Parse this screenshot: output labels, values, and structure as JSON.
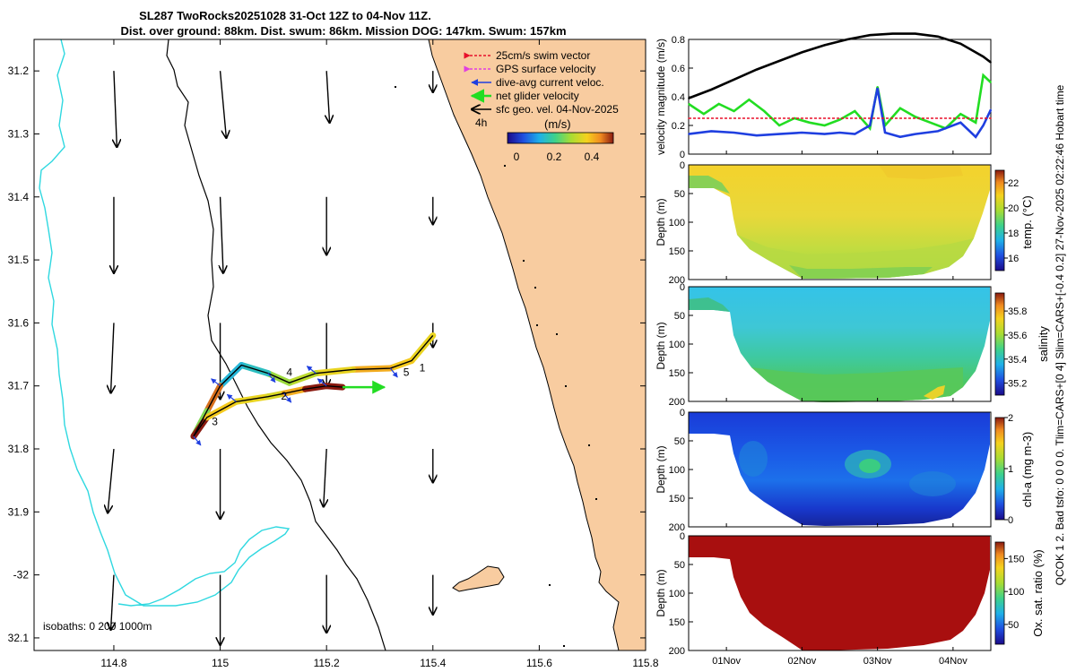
{
  "figure": {
    "title_line1": "SL287 TwoRocks20251028 31-Oct 12Z to 04-Nov 11Z.",
    "title_line2": "Dist. over ground: 88km. Dist. swum: 86km. Mission DOG: 147km. Swum: 157km",
    "side_note": "QCOK 1  2. Bad tsfo: 0  0  0  0. Tlim=CARS+[0 4] Slim=CARS+[-0.4 0.2] 27-Nov-2025 02:22:46 Hobart time"
  },
  "chart_data": [
    {
      "type": "map",
      "xlim": [
        114.65,
        115.8
      ],
      "ylim": [
        -32.12,
        -31.15
      ],
      "x_ticks": [
        114.8,
        115,
        115.2,
        115.4,
        115.6,
        115.8
      ],
      "x_tick_labels": [
        "114.8",
        "115",
        "115.2",
        "115.4",
        "115.6",
        "115.8"
      ],
      "y_ticks": [
        -31.2,
        -31.3,
        -31.4,
        -31.5,
        -31.6,
        -31.7,
        -31.8,
        -31.9,
        -32,
        -32.1
      ],
      "y_tick_labels": [
        "31.2",
        "31.3",
        "31.4",
        "31.5",
        "31.6",
        "31.7",
        "31.8",
        "31.9",
        "-32",
        "32.1"
      ],
      "legend": {
        "entries": [
          {
            "label": "25cm/s swim vector",
            "color": "#e8102a",
            "style": "dashed"
          },
          {
            "label": "GPS surface velocity",
            "color": "#e040e0",
            "style": "dashed"
          },
          {
            "label": "dive-avg current veloc.",
            "color": "#1f3fe0",
            "style": "solid"
          },
          {
            "label": "net glider velocity",
            "color": "#22dd22",
            "style": "solid"
          },
          {
            "label": "sfc geo. vel. 04-Nov-2025",
            "color": "#000000",
            "style": "solid"
          }
        ],
        "scale_label": "4h",
        "colorbar_label": "(m/s)",
        "colorbar_ticks": [
          "0",
          "0.2",
          "0.4"
        ]
      },
      "isobath_label": "isobaths: 0   200   1000m",
      "day_markers": [
        {
          "label": "1",
          "lon": 115.38,
          "lat": -31.677
        },
        {
          "label": "2",
          "lon": 115.12,
          "lat": -31.722
        },
        {
          "label": "3",
          "lon": 114.99,
          "lat": -31.762
        },
        {
          "label": "4",
          "lon": 115.13,
          "lat": -31.684
        },
        {
          "label": "5",
          "lon": 115.35,
          "lat": -31.684
        }
      ],
      "geostrophic_vectors": [
        {
          "lon": 114.8,
          "lat": -31.2,
          "u": 0.01,
          "v": -0.25
        },
        {
          "lon": 115.0,
          "lat": -31.2,
          "u": 0.02,
          "v": -0.22
        },
        {
          "lon": 115.2,
          "lat": -31.2,
          "u": 0.01,
          "v": -0.17
        },
        {
          "lon": 115.4,
          "lat": -31.2,
          "u": 0.0,
          "v": -0.07
        },
        {
          "lon": 114.8,
          "lat": -31.4,
          "u": 0.0,
          "v": -0.25
        },
        {
          "lon": 115.0,
          "lat": -31.4,
          "u": 0.01,
          "v": -0.25
        },
        {
          "lon": 115.2,
          "lat": -31.4,
          "u": 0.0,
          "v": -0.19
        },
        {
          "lon": 115.4,
          "lat": -31.4,
          "u": 0.0,
          "v": -0.09
        },
        {
          "lon": 114.8,
          "lat": -31.6,
          "u": -0.01,
          "v": -0.23
        },
        {
          "lon": 115.0,
          "lat": -31.6,
          "u": 0.0,
          "v": -0.25
        },
        {
          "lon": 115.2,
          "lat": -31.6,
          "u": 0.0,
          "v": -0.21
        },
        {
          "lon": 115.4,
          "lat": -31.6,
          "u": 0.0,
          "v": -0.08
        },
        {
          "lon": 114.8,
          "lat": -31.8,
          "u": -0.02,
          "v": -0.21
        },
        {
          "lon": 115.0,
          "lat": -31.8,
          "u": 0.0,
          "v": -0.23
        },
        {
          "lon": 115.2,
          "lat": -31.8,
          "u": -0.01,
          "v": -0.19
        },
        {
          "lon": 115.4,
          "lat": -31.8,
          "u": 0.0,
          "v": -0.11
        },
        {
          "lon": 114.8,
          "lat": -32.0,
          "u": -0.01,
          "v": -0.18
        },
        {
          "lon": 115.0,
          "lat": -32.0,
          "u": 0.0,
          "v": -0.23
        },
        {
          "lon": 115.2,
          "lat": -32.0,
          "u": 0.0,
          "v": -0.19
        },
        {
          "lon": 115.4,
          "lat": -32.0,
          "u": 0.0,
          "v": -0.13
        }
      ],
      "glider_track": [
        {
          "lon": 115.4,
          "lat": -31.62,
          "speed": 0.38
        },
        {
          "lon": 115.36,
          "lat": -31.66,
          "speed": 0.4
        },
        {
          "lon": 115.32,
          "lat": -31.672,
          "speed": 0.42
        },
        {
          "lon": 115.25,
          "lat": -31.674,
          "speed": 0.45
        },
        {
          "lon": 115.18,
          "lat": -31.68,
          "speed": 0.4
        },
        {
          "lon": 115.13,
          "lat": -31.695,
          "speed": 0.35
        },
        {
          "lon": 115.09,
          "lat": -31.68,
          "speed": 0.32
        },
        {
          "lon": 115.04,
          "lat": -31.667,
          "speed": 0.2
        },
        {
          "lon": 115.0,
          "lat": -31.7,
          "speed": 0.18
        },
        {
          "lon": 114.975,
          "lat": -31.74,
          "speed": 0.5
        },
        {
          "lon": 114.95,
          "lat": -31.78,
          "speed": 0.3
        },
        {
          "lon": 114.975,
          "lat": -31.75,
          "speed": 0.55
        },
        {
          "lon": 115.03,
          "lat": -31.725,
          "speed": 0.42
        },
        {
          "lon": 115.09,
          "lat": -31.717,
          "speed": 0.4
        },
        {
          "lon": 115.12,
          "lat": -31.712,
          "speed": 0.38
        },
        {
          "lon": 115.16,
          "lat": -31.705,
          "speed": 0.45
        },
        {
          "lon": 115.2,
          "lat": -31.7,
          "speed": 0.55
        },
        {
          "lon": 115.23,
          "lat": -31.702,
          "speed": 0.55
        }
      ],
      "net_velocity_arrow": {
        "lon": 115.23,
        "lat": -31.702,
        "u": 0.25,
        "v": 0.0
      }
    },
    {
      "type": "line",
      "ylabel": "velocity magnitude (m/s)",
      "ylim": [
        0,
        0.8
      ],
      "y_ticks": [
        "0",
        "0.2",
        "0.4",
        "0.6",
        "0.8"
      ],
      "xlim_days": [
        0,
        4.0
      ],
      "series": [
        {
          "name": "glider speed (black)",
          "color": "#000000",
          "t": [
            0,
            0.3,
            0.6,
            0.9,
            1.2,
            1.5,
            1.8,
            2.1,
            2.4,
            2.7,
            3.0,
            3.3,
            3.6,
            3.9,
            4.0
          ],
          "values": [
            0.39,
            0.45,
            0.52,
            0.59,
            0.65,
            0.71,
            0.76,
            0.8,
            0.83,
            0.84,
            0.84,
            0.82,
            0.77,
            0.68,
            0.64
          ]
        },
        {
          "name": "net velocity (green)",
          "color": "#22dd22",
          "t": [
            0,
            0.2,
            0.4,
            0.6,
            0.8,
            1.0,
            1.2,
            1.4,
            1.6,
            1.8,
            2.0,
            2.2,
            2.4,
            2.5,
            2.6,
            2.8,
            3.0,
            3.2,
            3.4,
            3.6,
            3.8,
            3.9,
            4.0
          ],
          "values": [
            0.35,
            0.28,
            0.35,
            0.3,
            0.38,
            0.3,
            0.2,
            0.25,
            0.22,
            0.2,
            0.24,
            0.3,
            0.18,
            0.47,
            0.2,
            0.32,
            0.26,
            0.22,
            0.18,
            0.28,
            0.22,
            0.55,
            0.5
          ]
        },
        {
          "name": "dive-avg current (blue)",
          "color": "#1f3fe0",
          "t": [
            0,
            0.3,
            0.6,
            0.9,
            1.2,
            1.5,
            1.8,
            2.0,
            2.2,
            2.4,
            2.5,
            2.6,
            2.8,
            3.0,
            3.3,
            3.6,
            3.8,
            3.9,
            4.0
          ],
          "values": [
            0.14,
            0.16,
            0.15,
            0.13,
            0.14,
            0.15,
            0.14,
            0.15,
            0.14,
            0.2,
            0.46,
            0.15,
            0.12,
            0.14,
            0.16,
            0.22,
            0.12,
            0.2,
            0.31
          ]
        },
        {
          "name": "swim vector (red)",
          "color": "#e8102a",
          "t": [
            0,
            4.0
          ],
          "values": [
            0.25,
            0.25
          ]
        }
      ]
    },
    {
      "type": "heatmap",
      "ylabel": "Depth (m)",
      "ylim": [
        200,
        0
      ],
      "y_ticks": [
        "0",
        "50",
        "100",
        "150",
        "200"
      ],
      "colorbar_label": "temp. (°C)",
      "colorbar_ticks": [
        "16",
        "18",
        "20",
        "22"
      ],
      "clim": [
        15,
        23
      ]
    },
    {
      "type": "heatmap",
      "ylabel": "Depth (m)",
      "ylim": [
        200,
        0
      ],
      "y_ticks": [
        "0",
        "50",
        "100",
        "150",
        "200"
      ],
      "colorbar_label": "salinity",
      "colorbar_ticks": [
        "35.2",
        "35.4",
        "35.6",
        "35.8"
      ],
      "clim": [
        35.1,
        35.95
      ]
    },
    {
      "type": "heatmap",
      "ylabel": "Depth (m)",
      "ylim": [
        200,
        0
      ],
      "y_ticks": [
        "0",
        "50",
        "100",
        "150",
        "200"
      ],
      "colorbar_label": "chl-a  (mg m-3)",
      "colorbar_ticks": [
        "0",
        "1",
        "2"
      ],
      "clim": [
        0,
        2
      ]
    },
    {
      "type": "heatmap",
      "ylabel": "Depth (m)",
      "ylim": [
        200,
        0
      ],
      "y_ticks": [
        "0",
        "50",
        "100",
        "150",
        "200"
      ],
      "x_ticks": [
        "01Nov",
        "02Nov",
        "03Nov",
        "04Nov"
      ],
      "colorbar_label": "Ox. sat. ratio (%)",
      "colorbar_ticks": [
        "50",
        "100",
        "150"
      ],
      "clim": [
        20,
        175
      ]
    }
  ]
}
